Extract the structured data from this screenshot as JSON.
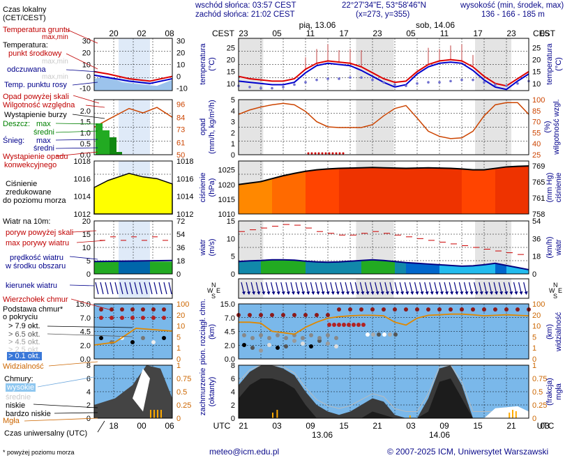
{
  "header": {
    "sunrise": "wschód słońca: 03:57 CEST",
    "sunset": "zachód słońca: 21:02 CEST",
    "coords": "22°27'34\"E, 53°58'46\"N",
    "grid": "(x=273, y=355)",
    "elev_title": "wysokość (min, środek, max)",
    "elev_values": "136 - 166 - 185 m"
  },
  "legend": {
    "local_time": "Czas lokalny",
    "local_time2": "(CET/CEST)",
    "soil_temp": "Temperatura gruntu",
    "max_min": "max,min",
    "temperature": "Temperatura:",
    "center_point": "punkt środkowy",
    "max_min2": "max,min",
    "feels_like": "odczuwana",
    "max_min3": "max,min",
    "dew_point": "Temp. punktu rosy",
    "precip_over": "Opad powyżej skali",
    "humidity": "Wilgotność względna",
    "storm": "Wystąpienie burzy",
    "rain": "Deszcz:",
    "rain_max": "max",
    "rain_avg": "średni",
    "snow": "Śnieg:",
    "snow_max": "max",
    "snow_avg": "średni",
    "conv": "Wystąpienie opadu",
    "conv2": "konwekcyjnego",
    "pressure": "Ciśnienie",
    "pressure2": "zredukowane",
    "pressure3": "do poziomu morza",
    "wind": "Wiatr na 10m:",
    "gusts_over": "poryw powyżej skali",
    "max_gust": "max porywy wiatru",
    "wind_speed": "prędkość wiatru",
    "wind_speed2": "w środku obszaru",
    "wind_dir": "kierunek wiatru",
    "cloud_top": "Wierzchołek chmur",
    "cloud_base": "Podstawa chmur*",
    "cloud_base2": "o pokryciu",
    "okt79": "> 7.9 okt.",
    "okt65": "> 6.5 okt.",
    "okt45": "> 4.5 okt.",
    "okt25": "> 2.5 okt.",
    "okt01": "> 0.1 okt.",
    "visibility": "Widzialność",
    "clouds": "Chmury:",
    "high": "wysokie",
    "mid": "średnie",
    "low": "niskie",
    "vlow": "bardzo niskie",
    "fog": "Mgła",
    "utc": "Czas uniwersalny (UTC)",
    "note": "* powyżej poziomu morza"
  },
  "axes": {
    "cest": "CEST",
    "utc": "UTC",
    "day1": "pią, 13.06",
    "day2": "sob, 14.06",
    "date1": "13.06",
    "date2": "14.06",
    "temp_l": "temperatura",
    "temp_u": "(°C)",
    "precip_l": "opad",
    "precip_u": "(mm/h, kg/m²/h)",
    "hum_l": "wilgotność wzgl.",
    "hum_u": "(%)",
    "press_l": "ciśnienie",
    "press_u": "(hPa)",
    "press_u2": "(mm Hg)",
    "wind_l": "wiatr",
    "wind_u": "(m/s)",
    "wind_u2": "(km/h)",
    "cloud_l": "pion. rozciągł. chm.",
    "cloud_u": "(km)",
    "vis_l": "widzialność",
    "vis_u": "(km)",
    "cover_l": "zachmurzenie",
    "cover_u": "(oktanty)",
    "fog_l": "mgła",
    "fog_u": "(frakcja)"
  },
  "footer": {
    "email": "meteo@icm.edu.pl",
    "copy": "© 2007-2025 ICM, Uniwersytet Warszawski"
  },
  "chart_data": {
    "type": "line",
    "cest_ticks": [
      "23",
      "05",
      "11",
      "17",
      "23",
      "05",
      "11",
      "17",
      "23",
      "05"
    ],
    "utc_ticks": [
      "21",
      "03",
      "09",
      "15",
      "21",
      "03",
      "09",
      "15",
      "21",
      "03"
    ],
    "left_cest_ticks": [
      "20",
      "02",
      "08"
    ],
    "left_utc_ticks": [
      "18",
      "00",
      "06"
    ],
    "temperature": {
      "yticks": [
        10,
        15,
        20,
        25
      ],
      "ylim": [
        7,
        29
      ],
      "center": [
        13,
        12,
        11.5,
        11,
        11,
        12,
        16,
        18.5,
        19.5,
        19,
        18.5,
        17,
        14.5,
        12,
        10.5,
        11,
        15,
        18,
        19.5,
        20,
        19.5,
        17,
        13,
        10,
        9,
        12,
        15
      ],
      "feels": [
        11,
        10.5,
        10,
        9.5,
        9.5,
        10.5,
        14.5,
        17.5,
        18.5,
        18,
        17.5,
        15.5,
        13,
        10.5,
        8.5,
        9.5,
        14,
        17,
        18.5,
        19,
        18.5,
        15.5,
        11.5,
        8.5,
        7.5,
        11,
        14
      ],
      "dew": [
        9,
        8.5,
        8,
        8,
        8.5,
        9.5,
        10.5,
        11.5,
        12,
        12,
        12.5,
        12.5,
        11.5,
        10.5,
        9.5,
        9,
        10,
        10.5,
        10.5,
        11,
        11.5,
        11.5,
        10.5,
        9.5,
        9,
        10,
        11
      ]
    },
    "precipitation": {
      "yticks": [
        0,
        0.5,
        1,
        1.5,
        2,
        2.5,
        3,
        3.5,
        4,
        4.5,
        5
      ],
      "ylim": [
        0,
        5
      ],
      "values": []
    },
    "humidity": {
      "yticks": [
        25,
        40,
        55,
        70,
        85,
        100
      ],
      "ylim": [
        25,
        100
      ],
      "values": [
        80,
        86,
        90,
        93,
        95,
        93,
        84,
        70,
        63,
        62,
        62,
        62,
        66,
        78,
        88,
        92,
        75,
        57,
        50,
        47,
        48,
        57,
        78,
        93,
        96,
        96,
        80
      ]
    },
    "pressure": {
      "yticks": [
        1010,
        1015,
        1020,
        1025
      ],
      "ylim": [
        1010,
        1028
      ],
      "mmhg": [
        758,
        761,
        765,
        769
      ],
      "values": [
        1020,
        1020.5,
        1021,
        1022,
        1023,
        1023.8,
        1024.5,
        1025,
        1025.3,
        1025.5,
        1025.6,
        1025.7,
        1025.8,
        1025.7,
        1025.6,
        1025.5,
        1025.6,
        1025.7,
        1025.6,
        1025.5,
        1025.3,
        1025,
        1025,
        1025.5,
        1026,
        1026.2,
        1026.3
      ]
    },
    "wind": {
      "yticks": [
        0,
        5,
        10,
        15
      ],
      "ylim": [
        0,
        15
      ],
      "kmh": [
        0,
        18,
        36,
        54
      ],
      "speed": [
        3.5,
        3.7,
        3.8,
        4,
        4,
        3.9,
        3.6,
        3.4,
        3.3,
        3.4,
        3.6,
        3.8,
        4,
        3.8,
        3.5,
        3.2,
        3,
        2.8,
        2.6,
        2.4,
        2.2,
        2.3,
        2.6,
        3,
        2.4,
        1.8,
        1.2
      ],
      "gust": [
        12,
        12.5,
        13,
        13.5,
        14,
        13.8,
        13,
        12,
        11.5,
        11,
        11,
        11.5,
        12,
        11.5,
        11,
        10.5,
        10,
        9.5,
        9,
        8.5,
        8,
        7.5,
        7,
        6.5,
        6,
        5.5,
        5
      ]
    },
    "clouds_vis": {
      "yticks": [
        0,
        2,
        4.5,
        7,
        15
      ],
      "vis_ticks": [
        0,
        1,
        5,
        10,
        20,
        100
      ],
      "visibility": [
        20,
        20,
        18,
        8,
        7,
        6,
        12,
        20,
        30,
        35,
        38,
        40,
        40,
        38,
        20,
        15,
        30,
        40,
        42,
        45,
        45,
        42,
        38,
        40,
        42,
        40,
        38
      ]
    },
    "cover": {
      "yticks": [
        0,
        2,
        4,
        6,
        8
      ],
      "fog_ticks": [
        0,
        0.25,
        0.5,
        0.75,
        1
      ],
      "low": [
        5,
        7,
        8,
        8,
        7.5,
        6.5,
        4,
        2,
        1,
        0.5,
        1,
        2,
        3,
        2.5,
        0.5,
        0,
        0,
        3,
        7.5,
        8,
        5,
        0,
        0,
        0,
        0,
        0.5,
        0
      ]
    }
  }
}
